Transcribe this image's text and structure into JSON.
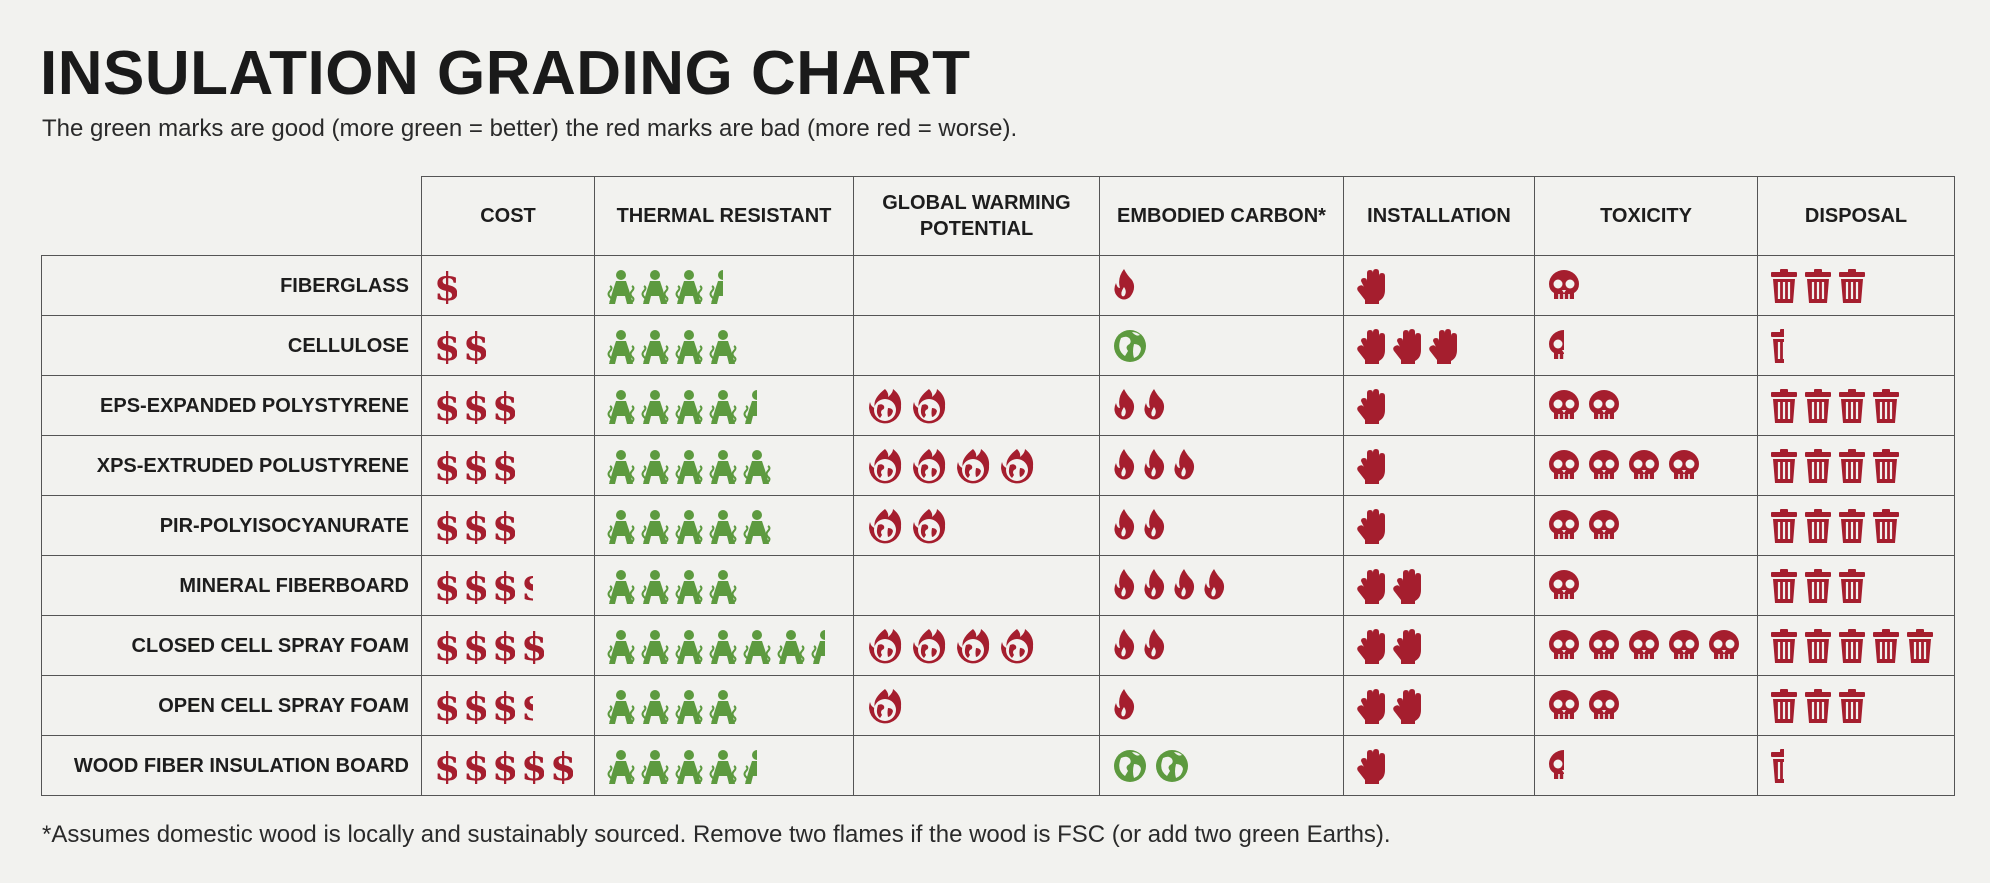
{
  "chart_data": {
    "type": "table",
    "title": "INSULATION GRADING CHART",
    "subtitle": "The green marks are good (more green = better) the red marks are bad (more red = worse).",
    "footnote": "*Assumes domestic wood is locally and sustainably sourced. Remove two flames if the wood is FSC (or add two green Earths).",
    "columns": [
      {
        "key": "cost",
        "label": "COST",
        "icon": "dollar-icon",
        "color": "#a51e2e"
      },
      {
        "key": "thermal",
        "label": "THERMAL RESISTANT",
        "icon": "person-warm-icon",
        "color": "#5d9a3f"
      },
      {
        "key": "gwp",
        "label": "GLOBAL WARMING POTENTIAL",
        "icon": "burning-earth-icon",
        "color": "#a51e2e"
      },
      {
        "key": "embodied",
        "label": "EMBODIED CARBON*",
        "icon": "flame-icon",
        "color": "#a51e2e"
      },
      {
        "key": "installation",
        "label": "INSTALLATION",
        "icon": "glove-icon",
        "color": "#a51e2e"
      },
      {
        "key": "toxicity",
        "label": "TOXICITY",
        "icon": "skull-icon",
        "color": "#a51e2e"
      },
      {
        "key": "disposal",
        "label": "DISPOSAL",
        "icon": "trash-can-icon",
        "color": "#a51e2e"
      }
    ],
    "rows": [
      {
        "name": "FIBERGLASS",
        "cost": 1,
        "thermal": 3.5,
        "gwp": 0,
        "embodied": 1,
        "installation": 1,
        "toxicity": 1,
        "disposal": 3
      },
      {
        "name": "CELLULOSE",
        "cost": 2,
        "thermal": 4,
        "gwp": 0,
        "embodied": 1,
        "embodied_icon": "green-earth-icon",
        "installation": 3,
        "toxicity": 0.5,
        "disposal": 0.5
      },
      {
        "name": "EPS-EXPANDED POLYSTYRENE",
        "cost": 3,
        "thermal": 4.5,
        "gwp": 2,
        "embodied": 2,
        "installation": 1,
        "toxicity": 2,
        "disposal": 4
      },
      {
        "name": "XPS-EXTRUDED POLUSTYRENE",
        "cost": 3,
        "thermal": 5,
        "gwp": 4,
        "embodied": 3,
        "installation": 1,
        "toxicity": 4,
        "disposal": 4
      },
      {
        "name": "PIR-POLYISOCYANURATE",
        "cost": 3,
        "thermal": 5,
        "gwp": 2,
        "embodied": 2,
        "installation": 1,
        "toxicity": 2,
        "disposal": 4
      },
      {
        "name": "MINERAL FIBERBOARD",
        "cost": 3.5,
        "thermal": 4,
        "gwp": 0,
        "embodied": 4,
        "installation": 2,
        "toxicity": 1,
        "disposal": 3
      },
      {
        "name": "CLOSED CELL SPRAY FOAM",
        "cost": 4,
        "thermal": 6.5,
        "gwp": 4,
        "embodied": 2,
        "installation": 2,
        "toxicity": 5,
        "disposal": 5
      },
      {
        "name": "OPEN CELL SPRAY FOAM",
        "cost": 3.5,
        "thermal": 4,
        "gwp": 1,
        "embodied": 1,
        "installation": 2,
        "toxicity": 2,
        "disposal": 3
      },
      {
        "name": "WOOD FIBER INSULATION BOARD",
        "cost": 5,
        "thermal": 4.5,
        "gwp": 0,
        "embodied": 2,
        "embodied_icon": "green-earth-icon",
        "installation": 1,
        "toxicity": 0.5,
        "disposal": 0.5
      }
    ],
    "colors": {
      "good": "#5d9a3f",
      "bad": "#a51e2e",
      "background": "#f2f2ef",
      "grid": "#555555"
    },
    "dollar_glyph": "$"
  }
}
